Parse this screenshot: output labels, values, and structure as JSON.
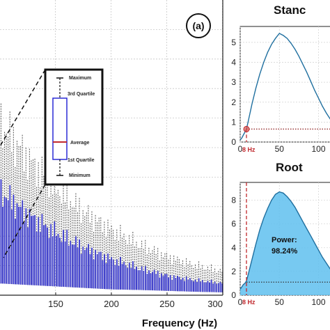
{
  "figure": {
    "panel_label": "(a)",
    "legend": {
      "labels": [
        "Maximum",
        "3rd Quartile",
        "Average",
        "1st Quartile",
        "Minimum"
      ]
    },
    "colors": {
      "box_fill": "#2a2ad6",
      "box_edge": "#1a1a9a",
      "whisker": "#555555",
      "line": "#1f6f9f",
      "area_fill": "#5fbfee",
      "cutoff": "#c0282d",
      "marker": "#d9534f"
    }
  },
  "chart_data": [
    {
      "type": "box",
      "panel": "a",
      "xlabel": "Frequency (Hz)",
      "ylabel": "",
      "xlim": [
        100,
        300
      ],
      "xticks": [
        150,
        200,
        250,
        300
      ],
      "grid": true,
      "trend": {
        "x": [
          100,
          125,
          150,
          175,
          200,
          225,
          250,
          275,
          300
        ],
        "q3": [
          0.35,
          0.27,
          0.21,
          0.16,
          0.12,
          0.09,
          0.065,
          0.05,
          0.04
        ],
        "average": [
          0.22,
          0.17,
          0.13,
          0.1,
          0.075,
          0.055,
          0.042,
          0.033,
          0.026
        ],
        "q1": [
          0.04,
          0.035,
          0.03,
          0.025,
          0.02,
          0.018,
          0.015,
          0.012,
          0.01
        ],
        "maximum": [
          0.58,
          0.46,
          0.36,
          0.28,
          0.22,
          0.17,
          0.13,
          0.1,
          0.08
        ]
      }
    },
    {
      "type": "line",
      "panel": "top-right",
      "title": "Stanc",
      "xlim": [
        0,
        120
      ],
      "ylim": [
        0,
        5.8
      ],
      "xticks": [
        0,
        50,
        100
      ],
      "xtick_labels": [
        "0",
        "50",
        "100"
      ],
      "yticks": [
        0,
        1,
        2,
        3,
        4,
        5
      ],
      "ytick_labels": [
        "0",
        "1",
        "2",
        "3",
        "4",
        "5"
      ],
      "cutoff_label": "8 Hz",
      "threshold": 0.65,
      "x": [
        0,
        2,
        4,
        6,
        8,
        10,
        15,
        20,
        25,
        30,
        35,
        40,
        45,
        50,
        55,
        60,
        65,
        70,
        75,
        80,
        85,
        90,
        95,
        100,
        105,
        110,
        115,
        120
      ],
      "y": [
        0.1,
        0.2,
        0.35,
        0.5,
        0.65,
        1.0,
        1.9,
        2.7,
        3.4,
        4.0,
        4.5,
        4.9,
        5.2,
        5.45,
        5.35,
        5.2,
        4.95,
        4.65,
        4.3,
        3.9,
        3.5,
        3.05,
        2.6,
        2.2,
        1.8,
        1.45,
        1.15,
        0.9
      ]
    },
    {
      "type": "area",
      "panel": "bottom-right",
      "title": "Root",
      "xlim": [
        0,
        120
      ],
      "ylim": [
        0,
        9.5
      ],
      "xticks": [
        0,
        50,
        100
      ],
      "xtick_labels": [
        "0",
        "50",
        "100"
      ],
      "yticks": [
        0,
        2,
        4,
        6,
        8
      ],
      "ytick_labels": [
        "0",
        "2",
        "4",
        "6",
        "8"
      ],
      "cutoff_label": "8 Hz",
      "power_label": "Power:",
      "power_value": "98.24%",
      "threshold": 1.1,
      "x": [
        0,
        2,
        4,
        6,
        8,
        10,
        15,
        20,
        25,
        30,
        35,
        40,
        45,
        50,
        55,
        60,
        65,
        70,
        75,
        80,
        85,
        90,
        95,
        100,
        105,
        110,
        115,
        120
      ],
      "y": [
        0.5,
        0.7,
        0.9,
        1.0,
        1.2,
        1.7,
        3.0,
        4.3,
        5.5,
        6.5,
        7.3,
        8.0,
        8.5,
        8.7,
        8.6,
        8.3,
        7.9,
        7.4,
        6.8,
        6.2,
        5.6,
        5.0,
        4.4,
        3.8,
        3.2,
        2.7,
        2.2,
        1.8
      ]
    }
  ]
}
